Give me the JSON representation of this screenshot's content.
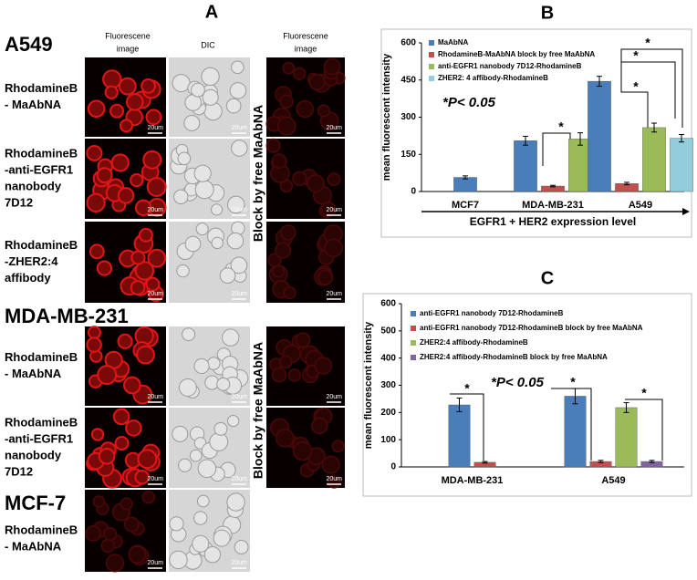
{
  "panel_a": {
    "label": "A",
    "column_headers": [
      [
        "Fluorescene",
        "image"
      ],
      [
        "DIC"
      ],
      [
        "Fluorescene",
        "image"
      ]
    ],
    "cell_lines": [
      {
        "name": "A549",
        "rows": [
          [
            "RhodamineB",
            "- MaAbNA"
          ],
          [
            "RhodamineB",
            "-anti-EGFR1",
            "nanobody",
            "7D12"
          ],
          [
            "RhodamineB",
            "-ZHER2:4",
            "affibody"
          ]
        ]
      },
      {
        "name": "MDA-MB-231",
        "rows": [
          [
            "RhodamineB",
            "- MaAbNA"
          ],
          [
            "RhodamineB",
            "-anti-EGFR1",
            "nanobody",
            "7D12"
          ]
        ]
      },
      {
        "name": "MCF-7",
        "rows": [
          [
            "RhodamineB",
            "- MaAbNA"
          ]
        ]
      }
    ],
    "block_label": "Block by free MaAbNA",
    "scale_label": "20um"
  },
  "chart_data": [
    {
      "type": "bar",
      "label": "B",
      "x_label": "EGFR1 + HER2 expression level",
      "y_label": "mean fluorescent intensity",
      "annotation": "*P< 0.05",
      "significance": [
        "*",
        "*",
        "*",
        "*"
      ],
      "categories": [
        "MCF7",
        "MDA-MB-231",
        "A549"
      ],
      "series": [
        {
          "name": "MaAbNA",
          "color": "#4a7ebb",
          "values": [
            57,
            205,
            445
          ],
          "errors": [
            6,
            18,
            20
          ]
        },
        {
          "name": "RhodamineB-MaAbNA block by free MaAbNA",
          "color": "#c0504d",
          "values": [
            null,
            22,
            32
          ],
          "errors": [
            null,
            3,
            5
          ]
        },
        {
          "name": "anti-EGFR1 nanobody 7D12-RhodamineB",
          "color": "#9bbb59",
          "values": [
            null,
            212,
            258
          ],
          "errors": [
            null,
            25,
            18
          ]
        },
        {
          "name": "ZHER2: 4 affibody-RhodamineB",
          "color": "#93cddd",
          "values": [
            null,
            null,
            215
          ],
          "errors": [
            null,
            null,
            15
          ]
        }
      ],
      "ylim": [
        0,
        600
      ],
      "yticks": [
        0,
        150,
        300,
        450,
        600
      ]
    },
    {
      "type": "bar",
      "label": "C",
      "y_label": "mean fluorescent intensity",
      "annotation": "*P< 0.05",
      "significance": [
        "*",
        "*",
        "*"
      ],
      "categories": [
        "MDA-MB-231",
        "A549"
      ],
      "series": [
        {
          "name": "anti-EGFR1 nanobody 7D12-RhodamineB",
          "color": "#4a7ebb",
          "values": [
            228,
            260
          ],
          "errors": [
            25,
            28
          ]
        },
        {
          "name": "anti-EGFR1 nanobody 7D12-RhodamineB block by free MaAbNA",
          "color": "#c0504d",
          "values": [
            17,
            20
          ],
          "errors": [
            3,
            4
          ]
        },
        {
          "name": "ZHER2:4 affibody-RhodamineB",
          "color": "#9bbb59",
          "values": [
            null,
            218
          ],
          "errors": [
            null,
            18
          ]
        },
        {
          "name": "ZHER2:4 affibody-RhodamineB block by free MaAbNA",
          "color": "#8064a2",
          "values": [
            null,
            20
          ],
          "errors": [
            null,
            4
          ]
        }
      ],
      "ylim": [
        0,
        600
      ],
      "yticks": [
        0,
        100,
        200,
        300,
        400,
        500,
        600
      ]
    }
  ]
}
